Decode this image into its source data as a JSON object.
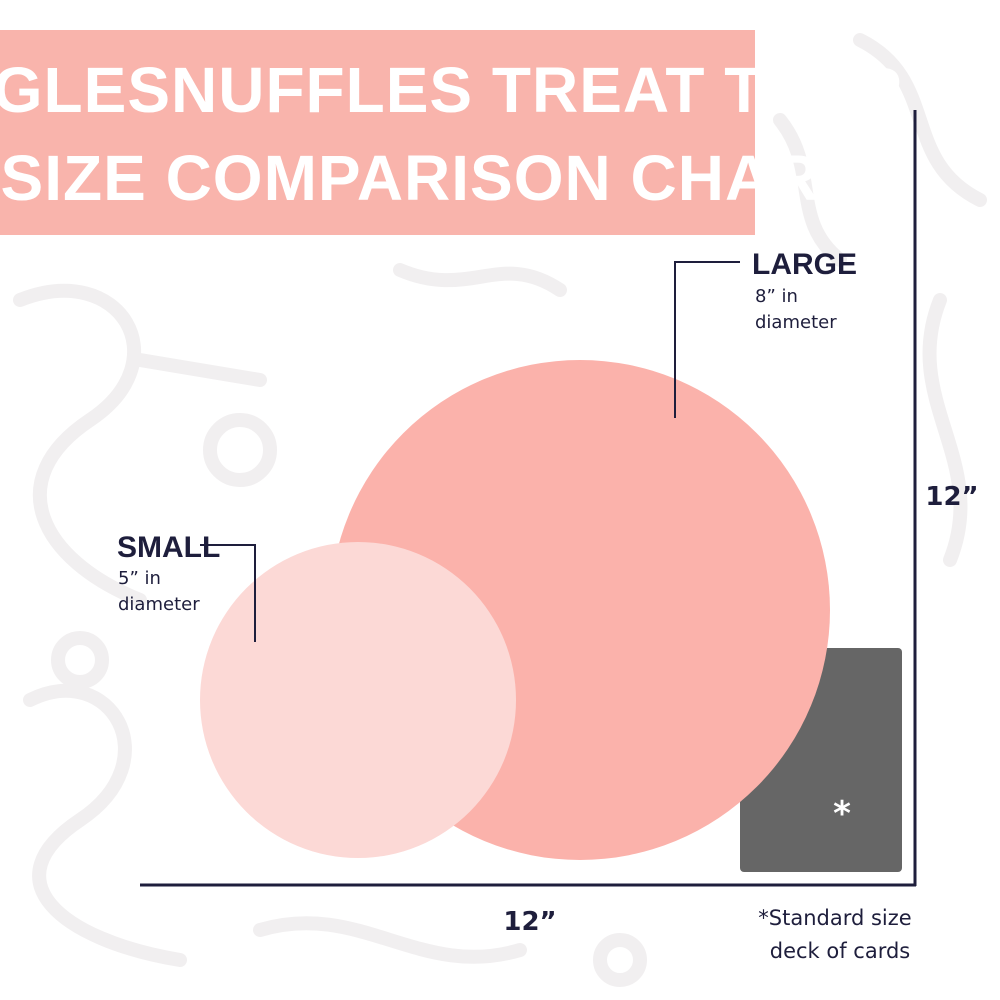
{
  "header": {
    "title_lines": [
      "HUGGLESNUFFLES TREAT TRAP",
      "SIZE COMPARISON CHART"
    ]
  },
  "items": [
    {
      "name": "LARGE",
      "size": "8” in",
      "unit": "diameter"
    },
    {
      "name": "SMALL",
      "size": "5” in",
      "unit": "diameter"
    }
  ],
  "dimensions": {
    "height": "12”",
    "width": "12”"
  },
  "reference": {
    "marker": "*",
    "note_lines": [
      "*Standard size",
      "deck of cards"
    ]
  }
}
